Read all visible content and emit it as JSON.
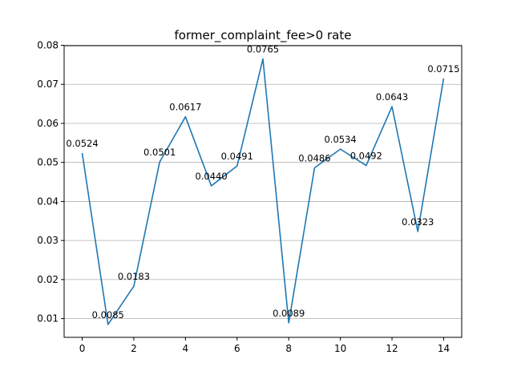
{
  "chart_data": {
    "type": "line",
    "title": "former_complaint_fee>0 rate",
    "xlabel": "",
    "ylabel": "",
    "x": [
      0,
      1,
      2,
      3,
      4,
      5,
      6,
      7,
      8,
      9,
      10,
      11,
      12,
      13,
      14
    ],
    "series": [
      {
        "values": [
          0.0524,
          0.0085,
          0.0183,
          0.0501,
          0.0617,
          0.044,
          0.0491,
          0.0765,
          0.0089,
          0.0486,
          0.0534,
          0.0492,
          0.0643,
          0.0323,
          0.0715
        ],
        "labels": [
          "0.0524",
          "0.0085",
          "0.0183",
          "0.0501",
          "0.0617",
          "0.0440",
          "0.0491",
          "0.0765",
          "0.0089",
          "0.0486",
          "0.0534",
          "0.0492",
          "0.0643",
          "0.0323",
          "0.0715"
        ],
        "color": "#1f77b4"
      }
    ],
    "xlim": [
      -0.7,
      14.7
    ],
    "ylim": [
      0.0052,
      0.0799
    ],
    "xticks": [
      0,
      2,
      4,
      6,
      8,
      10,
      12,
      14
    ],
    "xtick_labels": [
      "0",
      "2",
      "4",
      "6",
      "8",
      "10",
      "12",
      "14"
    ],
    "yticks": [
      0.01,
      0.02,
      0.03,
      0.04,
      0.05,
      0.06,
      0.07,
      0.08
    ],
    "ytick_labels": [
      "0.01",
      "0.02",
      "0.03",
      "0.04",
      "0.05",
      "0.06",
      "0.07",
      "0.08"
    ],
    "grid": "y-major",
    "legend": "none"
  }
}
